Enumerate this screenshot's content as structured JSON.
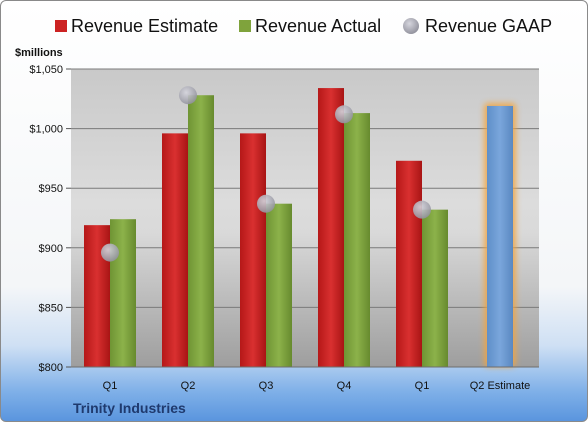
{
  "chart_data": {
    "type": "bar",
    "unit_label": "$millions",
    "categories": [
      "Q1",
      "Q2",
      "Q3",
      "Q4",
      "Q1",
      "Q2 Estimate"
    ],
    "series": [
      {
        "name": "Revenue Estimate",
        "type": "bar",
        "color": "#cc2222",
        "values": [
          919,
          996,
          996,
          1034,
          973,
          1019
        ]
      },
      {
        "name": "Revenue Actual",
        "type": "bar",
        "color": "#7fa33c",
        "values": [
          924,
          1028,
          937,
          1013,
          932,
          null
        ]
      },
      {
        "name": "Revenue GAAP",
        "type": "scatter",
        "color": "#9a9aa6",
        "values": [
          896,
          1028,
          937,
          1012,
          932,
          null
        ]
      }
    ],
    "estimate_highlight": {
      "category": "Q2 Estimate",
      "color": "#6a9ad2",
      "glow": "#f2a541"
    },
    "ylim": [
      800,
      1050
    ],
    "yticks": [
      800,
      850,
      900,
      950,
      1000,
      1050
    ],
    "ytick_labels": [
      "$800",
      "$850",
      "$900",
      "$950",
      "$1,000",
      "$1,050"
    ],
    "grid": true,
    "legend_position": "top"
  },
  "footer": {
    "company": "Trinity Industries"
  }
}
